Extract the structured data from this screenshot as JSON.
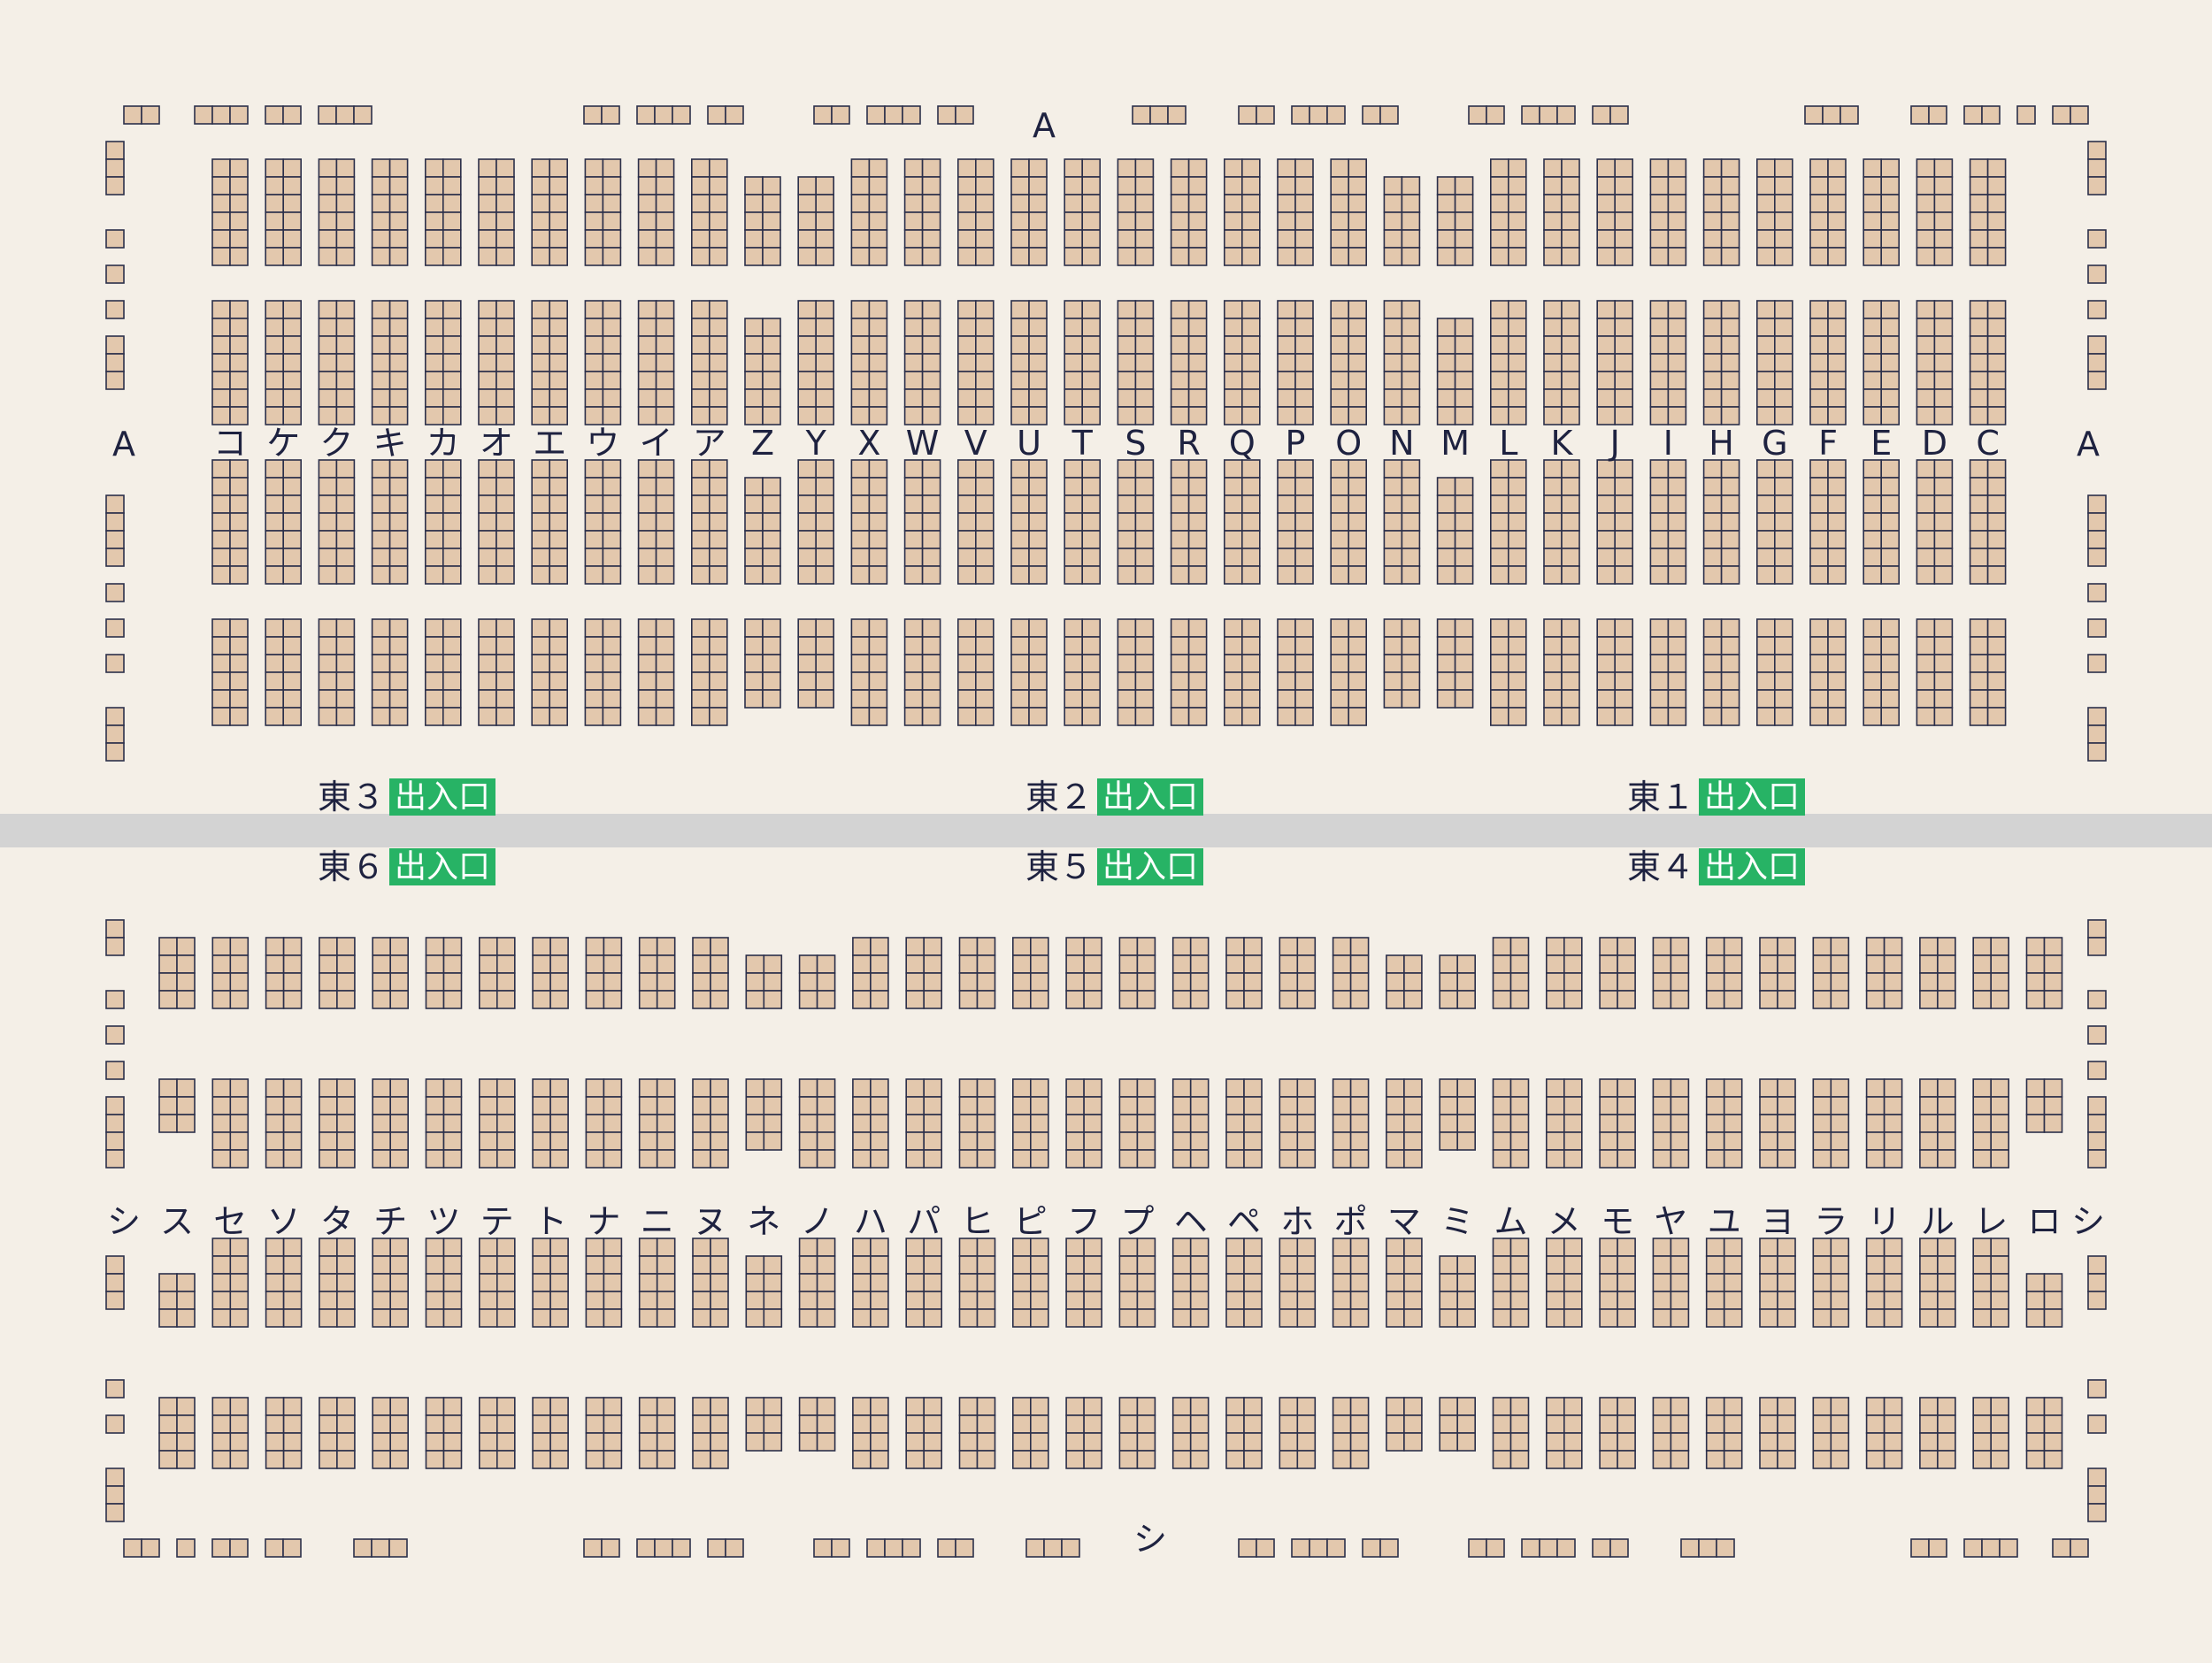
{
  "colors": {
    "background": "#f4efe7",
    "seat_fill": "#e3c8ad",
    "seat_stroke": "#2b2f4a",
    "corridor": "#d3d3d3",
    "gate": "#27b365",
    "text": "#1e2240"
  },
  "top_hall": {
    "name_label": "A",
    "row_labels": [
      "コ",
      "ケ",
      "ク",
      "キ",
      "カ",
      "オ",
      "エ",
      "ウ",
      "イ",
      "ア",
      "Z",
      "Y",
      "X",
      "W",
      "V",
      "U",
      "T",
      "S",
      "R",
      "Q",
      "P",
      "O",
      "N",
      "M",
      "L",
      "K",
      "J",
      "I",
      "H",
      "G",
      "F",
      "E",
      "D",
      "C"
    ]
  },
  "bottom_hall": {
    "name_label": "シ",
    "row_labels": [
      "ス",
      "セ",
      "ソ",
      "タ",
      "チ",
      "ツ",
      "テ",
      "ト",
      "ナ",
      "ニ",
      "ヌ",
      "ネ",
      "ノ",
      "ハ",
      "パ",
      "ヒ",
      "ピ",
      "フ",
      "プ",
      "ヘ",
      "ペ",
      "ホ",
      "ポ",
      "マ",
      "ミ",
      "ム",
      "メ",
      "モ",
      "ヤ",
      "ユ",
      "ヨ",
      "ラ",
      "リ",
      "ル",
      "レ",
      "ロ"
    ]
  },
  "entrances": [
    {
      "hall": "東３",
      "label": "出入口"
    },
    {
      "hall": "東２",
      "label": "出入口"
    },
    {
      "hall": "東１",
      "label": "出入口"
    },
    {
      "hall": "東６",
      "label": "出入口"
    },
    {
      "hall": "東５",
      "label": "出入口"
    },
    {
      "hall": "東４",
      "label": "出入口"
    }
  ]
}
